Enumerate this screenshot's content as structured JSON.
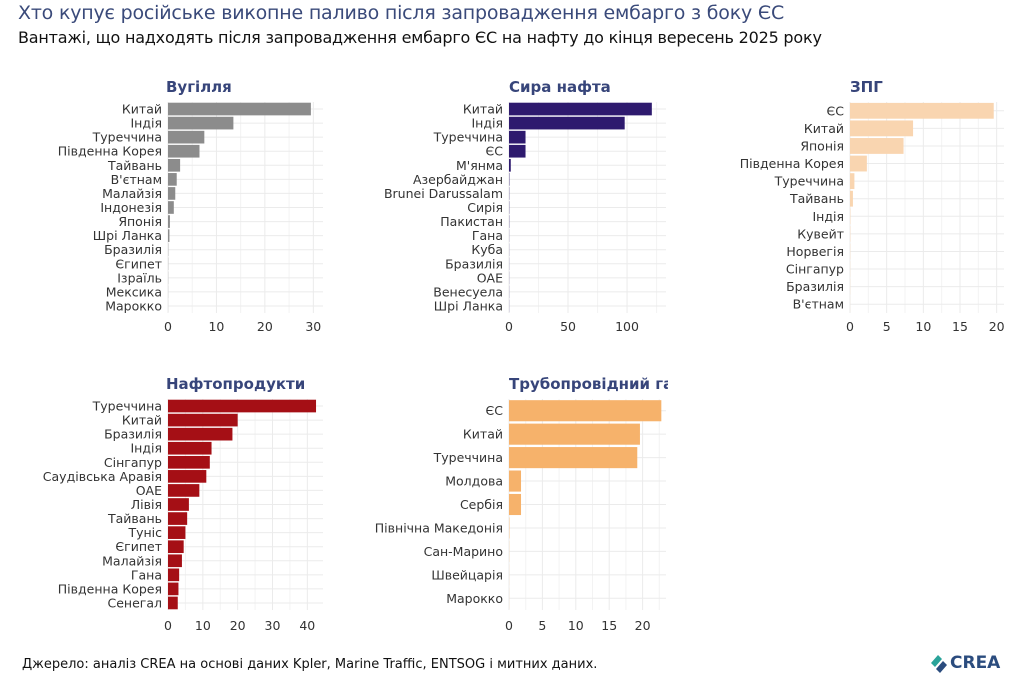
{
  "header": {
    "title": "Хто купує російське викопне паливо після запровадження ембарго з боку ЄС",
    "subtitle": "Вантажі, що надходять після запровадження ембарго ЄС на нафту до кінця вересень 2025 року"
  },
  "footer": {
    "source": "Джерело: аналіз CREA на основі даних Kpler, Marine Traffic, ENTSOG і митних даних.",
    "logo_text": "CREA"
  },
  "chart_data": [
    {
      "type": "bar",
      "orientation": "horizontal",
      "title": "Вугілля",
      "color": "#8c8c8c",
      "categories": [
        "Китай",
        "Індія",
        "Туреччина",
        "Південна Корея",
        "Тайвань",
        "В'єтнам",
        "Малайзія",
        "Індонезія",
        "Японія",
        "Шрі Ланка",
        "Бразилія",
        "Єгипет",
        "Ізраїль",
        "Мексика",
        "Марокко"
      ],
      "values": [
        29.5,
        13.5,
        7.5,
        6.5,
        2.5,
        1.8,
        1.5,
        1.2,
        0.4,
        0.3,
        0.05,
        0.04,
        0.03,
        0.02,
        0.01
      ],
      "xlim": [
        0,
        32
      ],
      "xticks": [
        0,
        10,
        20,
        30
      ],
      "grid": true
    },
    {
      "type": "bar",
      "orientation": "horizontal",
      "title": "Сира нафта",
      "color": "#2e1a6e",
      "categories": [
        "Китай",
        "Індія",
        "Туреччина",
        "ЄС",
        "М'янма",
        "Азербайджан",
        "Brunei Darussalam",
        "Сирія",
        "Пакистан",
        "Гана",
        "Куба",
        "Бразилія",
        "ОАЕ",
        "Венесуела",
        "Шрі Ланка"
      ],
      "values": [
        121,
        98,
        14,
        14,
        1.5,
        0.3,
        0.2,
        0.2,
        0.2,
        0.1,
        0.1,
        0.1,
        0.1,
        0.1,
        0.1
      ],
      "xlim": [
        0,
        133
      ],
      "xticks": [
        0,
        50,
        100
      ],
      "grid": true
    },
    {
      "type": "bar",
      "orientation": "horizontal",
      "title": "ЗПГ",
      "color": "#f9d5b0",
      "categories": [
        "ЄС",
        "Китай",
        "Японія",
        "Південна Корея",
        "Туреччина",
        "Тайвань",
        "Індія",
        "Кувейт",
        "Норвегія",
        "Сінгапур",
        "Бразилія",
        "В'єтнам"
      ],
      "values": [
        19.6,
        8.6,
        7.3,
        2.3,
        0.6,
        0.4,
        0.05,
        0.04,
        0.03,
        0.02,
        0.02,
        0.01
      ],
      "xlim": [
        0,
        21
      ],
      "xticks": [
        0,
        5,
        10,
        15,
        20
      ],
      "grid": true
    },
    {
      "type": "bar",
      "orientation": "horizontal",
      "title": "Нафтопродукти",
      "color": "#a50f15",
      "categories": [
        "Туреччина",
        "Китай",
        "Бразилія",
        "Індія",
        "Сінгапур",
        "Саудівська Аравія",
        "ОАЕ",
        "Лівія",
        "Тайвань",
        "Туніс",
        "Єгипет",
        "Малайзія",
        "Гана",
        "Південна Корея",
        "Сенегал"
      ],
      "values": [
        42.5,
        20,
        18.5,
        12.5,
        12,
        11,
        9,
        6,
        5.5,
        5,
        4.5,
        4,
        3.2,
        3,
        2.8
      ],
      "xlim": [
        0,
        44.5
      ],
      "xticks": [
        0,
        10,
        20,
        30,
        40
      ],
      "grid": true
    },
    {
      "type": "bar",
      "orientation": "horizontal",
      "title": "Трубопровідний газ",
      "color": "#f6b26b",
      "categories": [
        "ЄС",
        "Китай",
        "Туреччина",
        "Молдова",
        "Сербія",
        "Північна Македонія",
        "Сан-Марино",
        "Швейцарія",
        "Марокко"
      ],
      "values": [
        22.8,
        19.6,
        19.2,
        1.8,
        1.8,
        0.05,
        0.02,
        0.01,
        0.01
      ],
      "xlim": [
        0,
        23.5
      ],
      "xticks": [
        0,
        5,
        10,
        15,
        20
      ],
      "grid": true
    }
  ]
}
